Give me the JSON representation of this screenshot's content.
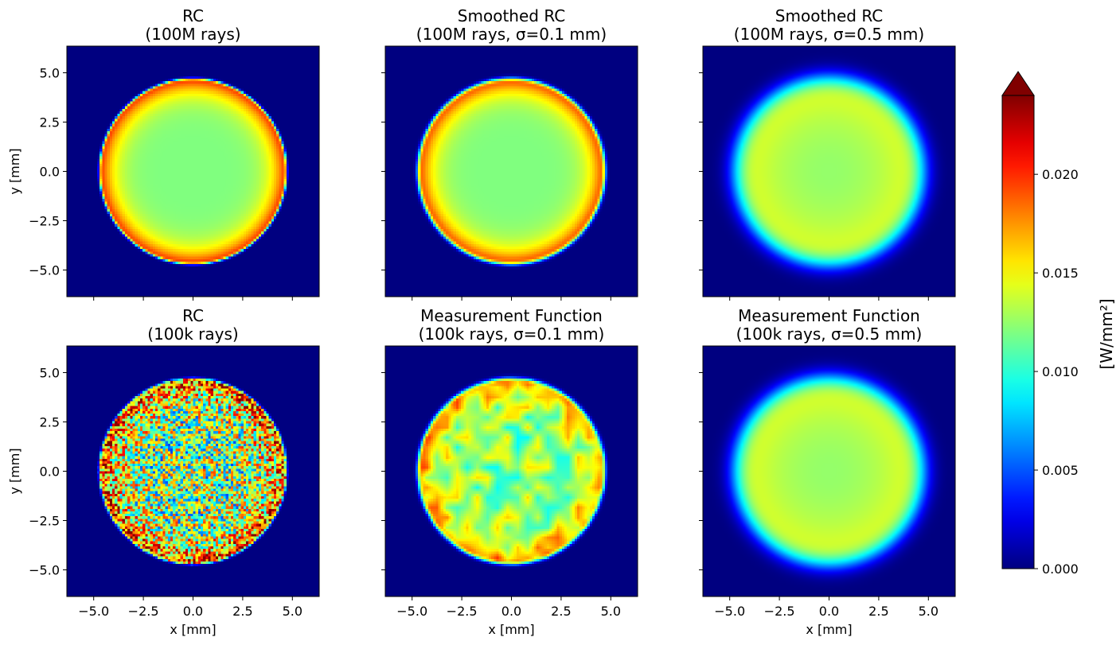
{
  "chart_data": {
    "type": "heatmap",
    "layout": {
      "rows": 2,
      "cols": 3,
      "sharex": true,
      "sharey": true
    },
    "xlabel": "x [mm]",
    "ylabel": "y [mm]",
    "xlim": [
      -6.35,
      6.35
    ],
    "ylim": [
      -6.35,
      6.35
    ],
    "xticks": [
      -5.0,
      -2.5,
      0.0,
      2.5,
      5.0
    ],
    "yticks": [
      -5.0,
      -2.5,
      0.0,
      2.5,
      5.0
    ],
    "xtick_labels": [
      "−5.0",
      "−2.5",
      "0.0",
      "2.5",
      "5.0"
    ],
    "ytick_labels": [
      "5.0",
      "2.5",
      "0.0",
      "−2.5",
      "−5.0"
    ],
    "colormap": "jet",
    "colorbar": {
      "label": "[W/mm²]",
      "vmin": 0.0,
      "vmax": 0.024,
      "extend": "max",
      "over_color": "#800000",
      "ticks": [
        0.0,
        0.005,
        0.01,
        0.015,
        0.02
      ],
      "tick_labels": [
        "0.000",
        "0.005",
        "0.010",
        "0.015",
        "0.020"
      ]
    },
    "panels": [
      {
        "title_line1": "RC",
        "title_line2": "(100M rays)",
        "disk_radius_mm": 4.7,
        "center_value": 0.012,
        "edge_value": 0.021,
        "blur_sigma_mm": 0.0,
        "noise": 0.0
      },
      {
        "title_line1": "Smoothed RC",
        "title_line2": "(100M rays, σ=0.1 mm)",
        "disk_radius_mm": 4.7,
        "center_value": 0.012,
        "edge_value": 0.021,
        "blur_sigma_mm": 0.1,
        "noise": 0.0
      },
      {
        "title_line1": "Smoothed RC",
        "title_line2": "(100M rays, σ=0.5 mm)",
        "disk_radius_mm": 4.7,
        "center_value": 0.0125,
        "edge_value": 0.0155,
        "blur_sigma_mm": 0.5,
        "noise": 0.0
      },
      {
        "title_line1": "RC",
        "title_line2": "(100k rays)",
        "disk_radius_mm": 4.7,
        "center_value": 0.012,
        "edge_value": 0.021,
        "blur_sigma_mm": 0.0,
        "noise": 0.005
      },
      {
        "title_line1": "Measurement Function",
        "title_line2": "(100k rays, σ=0.1 mm)",
        "disk_radius_mm": 4.7,
        "center_value": 0.0125,
        "edge_value": 0.019,
        "blur_sigma_mm": 0.1,
        "noise": 0.0022
      },
      {
        "title_line1": "Measurement Function",
        "title_line2": "(100k rays, σ=0.5 mm)",
        "disk_radius_mm": 4.7,
        "center_value": 0.0125,
        "edge_value": 0.0155,
        "blur_sigma_mm": 0.5,
        "noise": 0.0
      }
    ]
  }
}
